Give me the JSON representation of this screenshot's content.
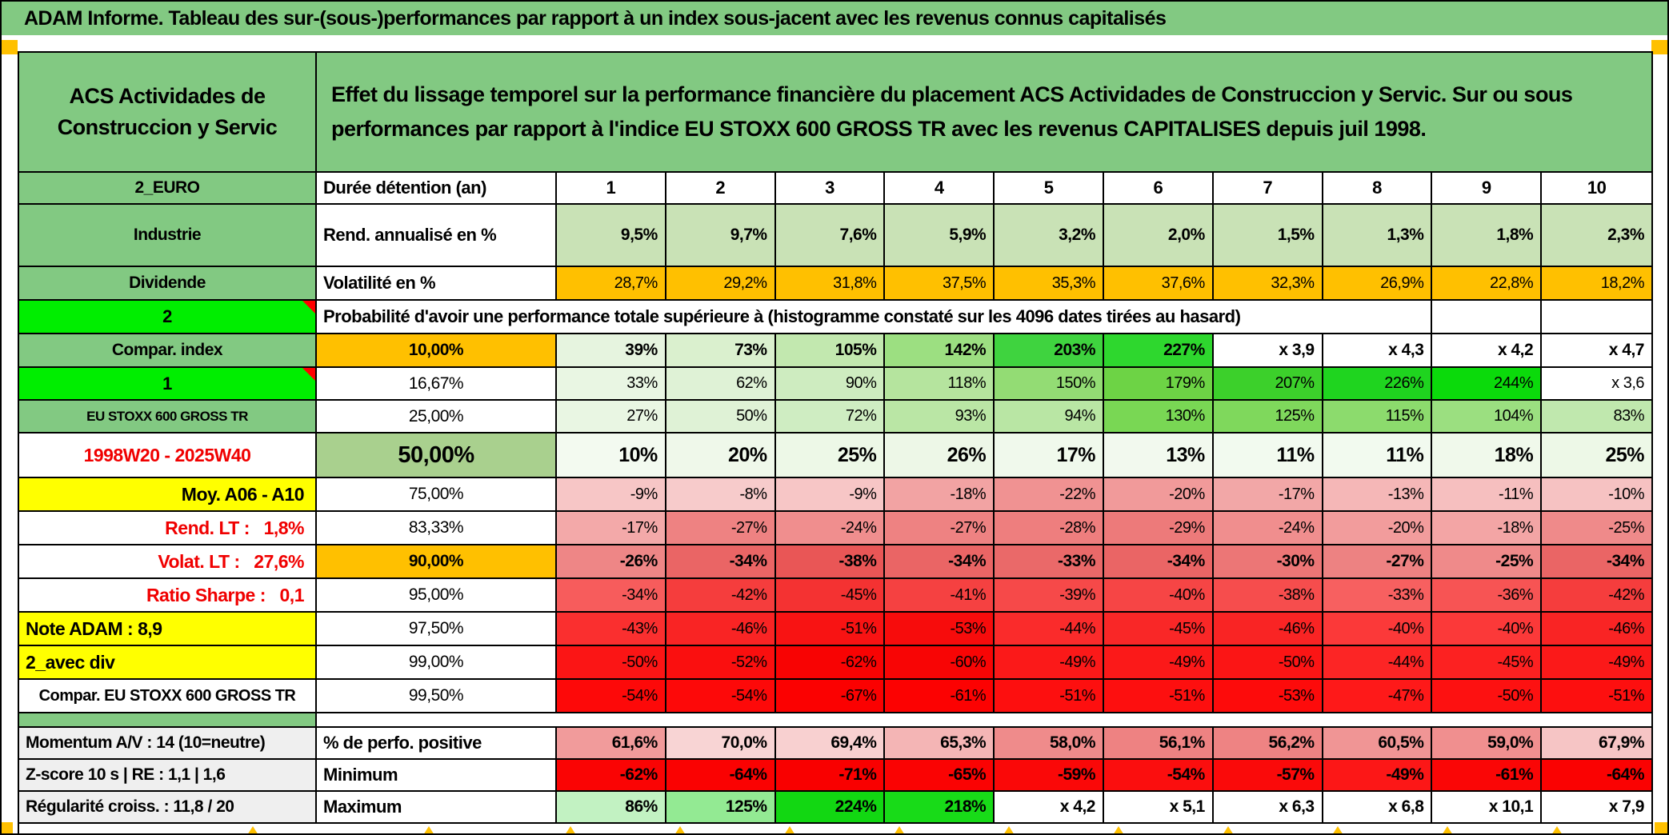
{
  "title": "ADAM Informe. Tableau des sur-(sous-)performances par rapport à un index sous-jacent avec les revenus connus capitalisés",
  "header": {
    "left": "ACS Actividades de Construccion y Servic",
    "right": "Effet du lissage temporel sur la performance financière du placement ACS Actividades de Construccion y Servic. Sur ou sous performances par rapport à l'indice EU STOXX 600 GROSS TR avec les revenus CAPITALISES depuis juil 1998."
  },
  "colors": {
    "band_green": "#82C982",
    "bright_green": "#00EE00",
    "orange": "#FFC000",
    "yellow": "#FFFF00",
    "green_50_cell": "#A9D08E",
    "light_green_cells": "#C9E2B6",
    "gray_label": "#EFEFEF",
    "red_text": "#F00000",
    "full_red": "#FD0909"
  },
  "rows": [
    {
      "id": "duration",
      "a": "2_EURO",
      "aS": "green",
      "b": "Durée détention (an)",
      "bS": "label",
      "vS": "head",
      "values": [
        "1",
        "2",
        "3",
        "4",
        "5",
        "6",
        "7",
        "8",
        "9",
        "10"
      ]
    },
    {
      "id": "rend",
      "a": "Industrie",
      "aS": "green",
      "b": "Rend. annualisé en %",
      "bS": "label",
      "vS": "bold",
      "bg": "#C9E2B6",
      "values": [
        "9,5%",
        "9,7%",
        "7,6%",
        "5,9%",
        "3,2%",
        "2,0%",
        "1,5%",
        "1,3%",
        "1,8%",
        "2,3%"
      ]
    },
    {
      "id": "volat",
      "a": "Dividende",
      "aS": "green",
      "b": "Volatilité en %",
      "bS": "label",
      "vS": "normal",
      "bg": "#FFC000",
      "values": [
        "28,7%",
        "29,2%",
        "31,8%",
        "37,5%",
        "35,3%",
        "37,6%",
        "32,3%",
        "26,9%",
        "22,8%",
        "18,2%"
      ]
    },
    {
      "id": "note",
      "a": "2",
      "aS": "bright",
      "corner": true,
      "empty": 2,
      "note": "Probabilité d'avoir une performance totale supérieure à (histogramme constaté sur les 4096 dates tirées au hasard)"
    },
    {
      "id": "p10",
      "a": "Compar. index",
      "aS": "green",
      "b": "10,00%",
      "bS": "orange",
      "vS": "bold",
      "values": [
        "39%",
        "73%",
        "105%",
        "142%",
        "203%",
        "227%",
        "x 3,9",
        "x 4,3",
        "x 4,2",
        "x 4,7"
      ],
      "bgs": [
        "#E6F4DF",
        "#DAF0CE",
        "#C2E8AF",
        "#9CDF81",
        "#3FD33F",
        "#2ED72E",
        "#FFFFFF",
        "#FFFFFF",
        "#FFFFFF",
        "#FFFFFF"
      ]
    },
    {
      "id": "p16",
      "a": "1",
      "aS": "bright",
      "corner": true,
      "b": "16,67%",
      "bS": "center",
      "vS": "normal",
      "values": [
        "33%",
        "62%",
        "90%",
        "118%",
        "150%",
        "179%",
        "207%",
        "226%",
        "244%",
        "x 3,6"
      ],
      "bgs": [
        "#E9F6E3",
        "#DFF2D6",
        "#CEECC0",
        "#B5E49E",
        "#93DC74",
        "#6DD345",
        "#3CD02B",
        "#1FD41F",
        "#0BDA0B",
        "#FFFFFF"
      ]
    },
    {
      "id": "p25",
      "a": "EU STOXX 600 GROSS TR",
      "aS": "green-small",
      "b": "25,00%",
      "bS": "center",
      "vS": "normal",
      "values": [
        "27%",
        "50%",
        "72%",
        "93%",
        "94%",
        "130%",
        "125%",
        "115%",
        "104%",
        "83%"
      ],
      "bgs": [
        "#E9F6E3",
        "#DFF2D6",
        "#CFEDC2",
        "#BAE6A5",
        "#B9E6A4",
        "#79D754",
        "#7FD85C",
        "#8CDB6D",
        "#9BDF80",
        "#C0E8AE"
      ]
    },
    {
      "id": "p50",
      "a": "1998W20 - 2025W40",
      "aS": "red-center",
      "b": "50,00%",
      "bS": "green-big",
      "vS": "big",
      "values": [
        "10%",
        "20%",
        "25%",
        "26%",
        "17%",
        "13%",
        "11%",
        "11%",
        "18%",
        "25%"
      ],
      "bgs": [
        "#F3FAF0",
        "#EFF8EA",
        "#EDF8E7",
        "#EDF7E7",
        "#F0F9EC",
        "#F2F9EE",
        "#F2FAEF",
        "#F2FAEF",
        "#F0F9EB",
        "#EDF8E7"
      ]
    },
    {
      "id": "p75",
      "a": "Moy. A06 - A10",
      "aS": "yellow-right",
      "b": "75,00%",
      "bS": "center",
      "vS": "normal",
      "values": [
        "-9%",
        "-8%",
        "-9%",
        "-18%",
        "-22%",
        "-20%",
        "-17%",
        "-13%",
        "-11%",
        "-10%"
      ],
      "bgs": [
        "#F7C6C6",
        "#F7CBCB",
        "#F7C6C6",
        "#F2A3A3",
        "#F09292",
        "#F19A9A",
        "#F2A7A7",
        "#F5B7B7",
        "#F6BFBF",
        "#F6C2C2"
      ]
    },
    {
      "id": "p83",
      "a": "Rend. LT :   1,8%",
      "aS": "red-right",
      "b": "83,33%",
      "bS": "center",
      "vS": "normal",
      "values": [
        "-17%",
        "-27%",
        "-24%",
        "-27%",
        "-28%",
        "-29%",
        "-24%",
        "-20%",
        "-18%",
        "-25%"
      ],
      "bgs": [
        "#F3A9A9",
        "#EE8282",
        "#F08E8E",
        "#EE8282",
        "#EE7E7E",
        "#ED7A7A",
        "#F08E8E",
        "#F29C9C",
        "#F3A5A5",
        "#EF8A8A"
      ]
    },
    {
      "id": "p90",
      "a": "Volat. LT :   27,6%",
      "aS": "red-right",
      "b": "90,00%",
      "bS": "orange",
      "vS": "bold",
      "values": [
        "-26%",
        "-34%",
        "-38%",
        "-34%",
        "-33%",
        "-34%",
        "-30%",
        "-27%",
        "-25%",
        "-34%"
      ],
      "bgs": [
        "#EE8686",
        "#EA6565",
        "#E95656",
        "#EA6565",
        "#EA6969",
        "#EA6565",
        "#EC7676",
        "#ED8282",
        "#EF8A8A",
        "#EA6565"
      ]
    },
    {
      "id": "p95",
      "a": "Ratio Sharpe :   0,1",
      "aS": "red-right",
      "b": "95,00%",
      "bS": "center",
      "vS": "normal",
      "values": [
        "-34%",
        "-42%",
        "-45%",
        "-41%",
        "-39%",
        "-40%",
        "-38%",
        "-33%",
        "-36%",
        "-42%"
      ],
      "bgs": [
        "#F75C5C",
        "#F53D3D",
        "#F43232",
        "#F54141",
        "#F64949",
        "#F64545",
        "#F64D4D",
        "#F76060",
        "#F75454",
        "#F53D3D"
      ]
    },
    {
      "id": "p975",
      "a": "Note ADAM : 8,9",
      "aS": "yellow-left",
      "b": "97,50%",
      "bS": "center",
      "vS": "normal",
      "values": [
        "-43%",
        "-46%",
        "-51%",
        "-53%",
        "-44%",
        "-45%",
        "-46%",
        "-40%",
        "-40%",
        "-46%"
      ],
      "bgs": [
        "#FA2F2F",
        "#F92424",
        "#F81313",
        "#F70C0C",
        "#FA2B2B",
        "#F92727",
        "#F92424",
        "#FB3939",
        "#FB3939",
        "#F92424"
      ]
    },
    {
      "id": "p99",
      "a": "2_avec div",
      "aS": "yellow-left",
      "b": "99,00%",
      "bS": "center",
      "vS": "normal",
      "values": [
        "-50%",
        "-52%",
        "-62%",
        "-60%",
        "-49%",
        "-49%",
        "-50%",
        "-44%",
        "-45%",
        "-49%"
      ],
      "bgs": [
        "#FB1515",
        "#FA0F0F",
        "#F80303",
        "#F80505",
        "#FB1919",
        "#FB1919",
        "#FB1515",
        "#FC2525",
        "#FC2121",
        "#FB1919"
      ]
    },
    {
      "id": "p995",
      "a": "Compar. EU STOXX 600 GROSS TR",
      "aS": "white-center",
      "b": "99,50%",
      "bS": "center",
      "vS": "normal",
      "values": [
        "-54%",
        "-54%",
        "-67%",
        "-61%",
        "-51%",
        "-51%",
        "-53%",
        "-47%",
        "-50%",
        "-51%"
      ],
      "bgs": [
        "#FD0909",
        "#FD0909",
        "#FB0101",
        "#FC0202",
        "#FD0F0F",
        "#FD0F0F",
        "#FD0B0B",
        "#FE1919",
        "#FD1111",
        "#FD0F0F"
      ]
    },
    {
      "id": "sep",
      "separator": true
    },
    {
      "id": "perfpos",
      "a": "Momentum A/V : 14 (10=neutre)",
      "aS": "gray",
      "b": "% de perfo. positive",
      "bS": "label",
      "vS": "bold",
      "values": [
        "61,6%",
        "70,0%",
        "69,4%",
        "65,3%",
        "58,0%",
        "56,1%",
        "56,2%",
        "60,5%",
        "59,0%",
        "67,9%"
      ],
      "bgs": [
        "#F19B9B",
        "#F8D4D4",
        "#F8D0D0",
        "#F4B5B5",
        "#EF8B8B",
        "#EE8282",
        "#EE8383",
        "#F09595",
        "#F08F8F",
        "#F6C5C5"
      ]
    },
    {
      "id": "min",
      "a": "Z-score 10 s | RE : 1,1 | 1,6",
      "aS": "gray",
      "b": "Minimum",
      "bS": "label",
      "vS": "bold",
      "values": [
        "-62%",
        "-64%",
        "-71%",
        "-65%",
        "-59%",
        "-54%",
        "-57%",
        "-49%",
        "-61%",
        "-64%"
      ],
      "bgs": [
        "#FA0404",
        "#FA0202",
        "#F90000",
        "#FA0303",
        "#FA0808",
        "#FB0E0E",
        "#FA0A0A",
        "#FC1717",
        "#FA0606",
        "#FA0202"
      ]
    },
    {
      "id": "max",
      "a": "Régularité croiss. : 11,8 / 20",
      "aS": "gray",
      "b": "Maximum",
      "bS": "label",
      "vS": "bold",
      "values": [
        "86%",
        "125%",
        "224%",
        "218%",
        "x 4,2",
        "x 5,1",
        "x 6,3",
        "x 6,8",
        "x 10,1",
        "x 7,9"
      ],
      "bgs": [
        "#C2F2C2",
        "#93EA93",
        "#12D712",
        "#18DB18",
        "#FFFFFF",
        "#FFFFFF",
        "#FFFFFF",
        "#FFFFFF",
        "#FFFFFF",
        "#FFFFFF"
      ]
    }
  ]
}
